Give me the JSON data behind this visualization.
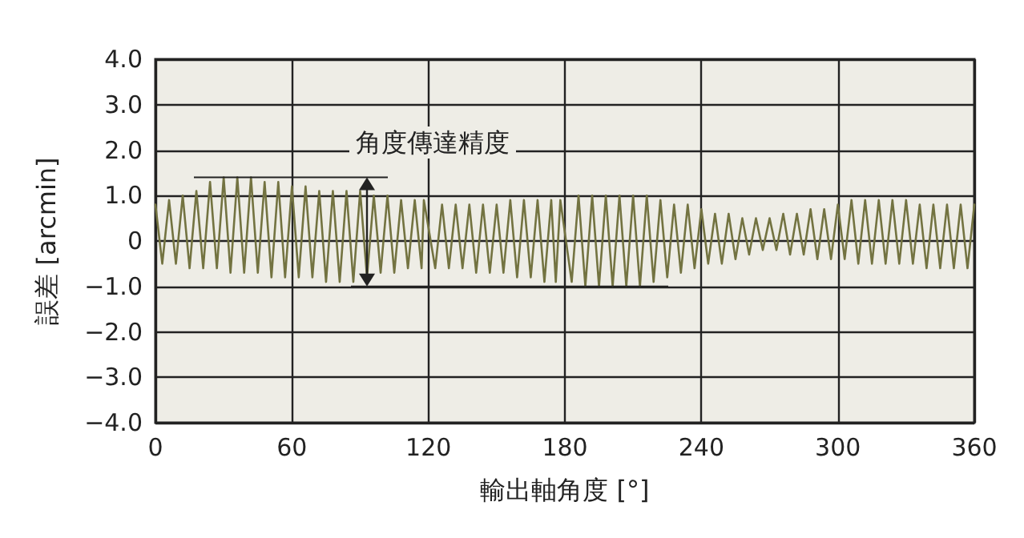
{
  "chart_data": {
    "type": "line",
    "xlabel": "輸出軸角度 [°]",
    "ylabel": "誤差 [arcmin]",
    "annotations": [
      "角度傳達精度"
    ],
    "xlim": [
      0,
      360
    ],
    "xticks": [
      0,
      60,
      120,
      180,
      240,
      300,
      360
    ],
    "ylim": [
      -4,
      4
    ],
    "yticks": [
      {
        "value": 4,
        "label": "4.0"
      },
      {
        "value": 3,
        "label": "3.0"
      },
      {
        "value": 2,
        "label": "2.0"
      },
      {
        "value": 1,
        "label": "1.0"
      },
      {
        "value": 0,
        "label": "0"
      },
      {
        "value": -1,
        "label": "−1.0"
      },
      {
        "value": -2,
        "label": "−2.0"
      },
      {
        "value": -3,
        "label": "−3.0"
      },
      {
        "value": -4,
        "label": "−4.0"
      }
    ],
    "grid": true,
    "marker": "none",
    "line_style": "solid",
    "series": [
      {
        "color": "#737341",
        "x": [
          0,
          3,
          6,
          9,
          12,
          15,
          18,
          21,
          24,
          27,
          30,
          33,
          36,
          39,
          42,
          45,
          48,
          51,
          54,
          57,
          60,
          63,
          66,
          69,
          72,
          75,
          78,
          81,
          84,
          87,
          90,
          93,
          96,
          99,
          102,
          105,
          108,
          111,
          114,
          117,
          118,
          123,
          126,
          129,
          132,
          135,
          138,
          141,
          144,
          147,
          150,
          153,
          156,
          159,
          162,
          165,
          168,
          171,
          174,
          176,
          178,
          183,
          186,
          189,
          192,
          195,
          198,
          201,
          204,
          207,
          210,
          213,
          216,
          219,
          222,
          225,
          228,
          231,
          234,
          237,
          240,
          243,
          246,
          249,
          252,
          255,
          258,
          261,
          264,
          267,
          270,
          273,
          276,
          279,
          282,
          285,
          288,
          291,
          294,
          297,
          300,
          303,
          306,
          309,
          312,
          315,
          318,
          321,
          324,
          327,
          330,
          333,
          336,
          339,
          342,
          345,
          348,
          351,
          354,
          357,
          360
        ],
        "values": [
          0.8,
          -0.5,
          0.9,
          -0.5,
          1.0,
          -0.6,
          1.1,
          -0.6,
          1.3,
          -0.6,
          1.4,
          -0.7,
          1.4,
          -0.7,
          1.4,
          -0.7,
          1.3,
          -0.8,
          1.3,
          -0.8,
          1.2,
          -0.8,
          1.2,
          -0.8,
          1.1,
          -0.9,
          1.1,
          -0.9,
          1.1,
          -0.9,
          1.1,
          -0.8,
          1.0,
          -0.7,
          1.0,
          -0.7,
          0.9,
          -0.6,
          0.9,
          -0.6,
          0.9,
          -0.6,
          0.8,
          -0.6,
          0.8,
          -0.6,
          0.8,
          -0.7,
          0.8,
          -0.7,
          0.8,
          -0.7,
          0.9,
          -0.8,
          0.9,
          -0.8,
          0.9,
          -0.9,
          0.9,
          -0.9,
          0.9,
          -0.9,
          1.0,
          -1.0,
          1.0,
          -1.0,
          1.0,
          -1.0,
          1.0,
          -1.0,
          1.0,
          -1.0,
          1.0,
          -0.9,
          0.9,
          -0.8,
          0.8,
          -0.7,
          0.8,
          -0.6,
          0.7,
          -0.5,
          0.6,
          -0.5,
          0.6,
          -0.4,
          0.5,
          -0.3,
          0.5,
          -0.2,
          0.5,
          -0.2,
          0.6,
          -0.3,
          0.6,
          -0.3,
          0.7,
          -0.4,
          0.7,
          -0.4,
          0.8,
          -0.4,
          0.9,
          -0.5,
          0.9,
          -0.5,
          0.9,
          -0.5,
          0.9,
          -0.5,
          0.9,
          -0.5,
          0.8,
          -0.6,
          0.8,
          -0.6,
          0.8,
          -0.6,
          0.8,
          -0.6,
          0.8
        ]
      }
    ]
  }
}
